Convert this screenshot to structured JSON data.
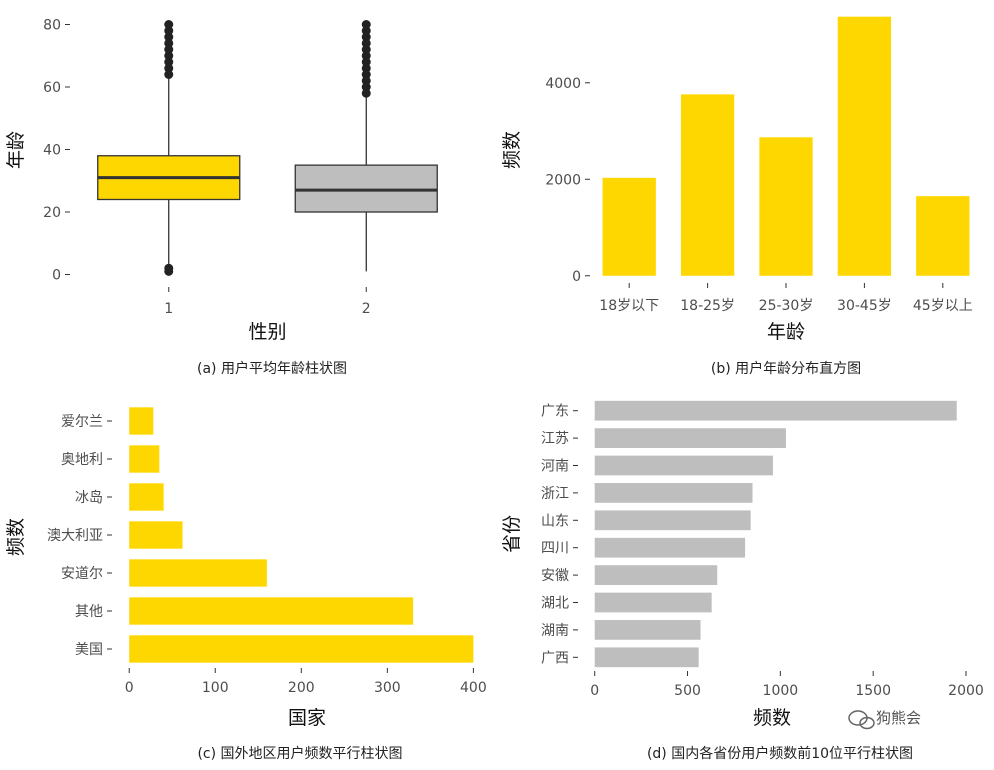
{
  "chart_data": [
    {
      "type": "box",
      "caption": "(a) 用户平均年龄柱状图",
      "xlabel": "性别",
      "ylabel": "年龄",
      "categories": [
        "1",
        "2"
      ],
      "yticks": [
        0,
        20,
        40,
        60,
        80
      ],
      "ylim": [
        -4,
        84
      ],
      "boxes": [
        {
          "name": "1",
          "q1": 24,
          "median": 31,
          "q3": 38,
          "whisker_low": 3,
          "whisker_high": 63,
          "outliers_high": [
            64,
            66,
            68,
            70,
            72,
            74,
            76,
            78,
            80
          ],
          "outliers_low": [
            1,
            2
          ],
          "color": "#FFD700"
        },
        {
          "name": "2",
          "q1": 20,
          "median": 27,
          "q3": 35,
          "whisker_low": 1,
          "whisker_high": 57,
          "outliers_high": [
            58,
            60,
            62,
            64,
            66,
            68,
            70,
            72,
            74,
            76,
            78,
            80
          ],
          "outliers_low": [],
          "color": "#BEBEBE"
        }
      ]
    },
    {
      "type": "bar",
      "caption": "(b) 用户年龄分布直方图",
      "xlabel": "年龄",
      "ylabel": "频数",
      "categories": [
        "18岁以下",
        "18-25岁",
        "25-30岁",
        "30-45岁",
        "45岁以上"
      ],
      "values": [
        2030,
        3760,
        2870,
        5370,
        1650
      ],
      "yticks": [
        0,
        2000,
        4000
      ],
      "ylim": [
        -150,
        5550
      ],
      "color": "#FFD700"
    },
    {
      "type": "bar",
      "orientation": "horizontal",
      "caption": "(c) 国外地区用户频数平行柱状图",
      "xlabel": "国家",
      "ylabel": "频数",
      "categories": [
        "爱尔兰",
        "奥地利",
        "冰岛",
        "澳大利亚",
        "安道尔",
        "其他",
        "美国"
      ],
      "values": [
        28,
        35,
        40,
        62,
        160,
        330,
        400
      ],
      "xticks": [
        0,
        100,
        200,
        300,
        400
      ],
      "xlim": [
        -20,
        410
      ],
      "color": "#FFD700"
    },
    {
      "type": "bar",
      "orientation": "horizontal",
      "caption": "(d) 国内各省份用户频数前10位平行柱状图",
      "xlabel": "频数",
      "ylabel": "省份",
      "categories": [
        "广东",
        "江苏",
        "河南",
        "浙江",
        "山东",
        "四川",
        "安徽",
        "湖北",
        "湖南",
        "广西"
      ],
      "values": [
        1950,
        1030,
        960,
        850,
        840,
        810,
        660,
        630,
        570,
        560
      ],
      "xticks": [
        0,
        500,
        1000,
        1500,
        2000
      ],
      "xlim": [
        -90,
        2000
      ],
      "color": "#BEBEBE"
    }
  ],
  "watermark": "狗熊会"
}
